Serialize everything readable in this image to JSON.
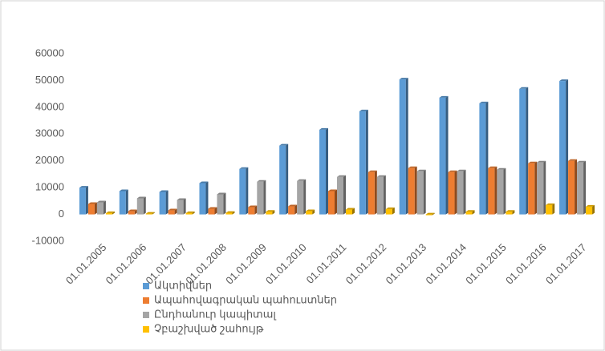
{
  "chart_data": {
    "type": "bar",
    "categories": [
      "01.01.2005",
      "01.01.2006",
      "01.01.2007",
      "01.01.2008",
      "01.01.2009",
      "01.01.2010",
      "01.01.2011",
      "01.01.2012",
      "01.01.2013",
      "01.01.2014",
      "01.01.2015",
      "01.01.2016",
      "01.01.2017"
    ],
    "series": [
      {
        "name": "Ակտիվներ",
        "color": "#5b9bd5",
        "values": [
          10000,
          8700,
          8400,
          11700,
          17000,
          25700,
          31600,
          38500,
          50400,
          43600,
          41500,
          46900,
          49800
        ]
      },
      {
        "name": "Ապահովագրական պահուստներ",
        "color": "#ed7d31",
        "values": [
          3900,
          1200,
          1500,
          2100,
          2700,
          3000,
          8700,
          15800,
          17300,
          15800,
          17300,
          19100,
          20000
        ]
      },
      {
        "name": "Ընդհանուր կապիտալ",
        "color": "#a5a5a5",
        "values": [
          4500,
          6000,
          5400,
          7500,
          12200,
          12500,
          14000,
          14000,
          16100,
          16100,
          16700,
          19400,
          19400
        ]
      },
      {
        "name": "Չբաշխված շահույթ",
        "color": "#ffc000",
        "values": [
          500,
          300,
          500,
          600,
          1000,
          1200,
          1800,
          2000,
          -200,
          1000,
          1000,
          3500,
          2900
        ]
      }
    ],
    "ylim": [
      -10000,
      60000
    ],
    "yticks": [
      -10000,
      0,
      10000,
      20000,
      30000,
      40000,
      50000,
      60000
    ],
    "grid": false,
    "legend": "bottom-left"
  }
}
